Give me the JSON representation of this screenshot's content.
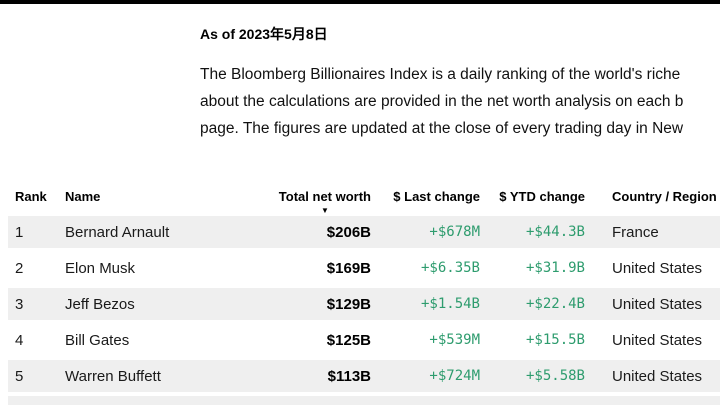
{
  "page": {
    "as_of": "As of 2023年5月8日",
    "intro_lines": [
      "The Bloomberg Billionaires Index is a daily ranking of the world's riche",
      "about the calculations are provided in the net worth analysis on each b",
      "page. The figures are updated at the close of every trading day in New"
    ]
  },
  "table": {
    "columns": [
      "Rank",
      "Name",
      "Total net worth",
      "$ Last change",
      "$ YTD change",
      "Country / Region"
    ],
    "sort_icon": "▼",
    "rows": [
      {
        "rank": "1",
        "name": "Bernard Arnault",
        "total_net_worth": "$206B",
        "last_change": "+$678M",
        "ytd_change": "+$44.3B",
        "country": "France"
      },
      {
        "rank": "2",
        "name": "Elon Musk",
        "total_net_worth": "$169B",
        "last_change": "+$6.35B",
        "ytd_change": "+$31.9B",
        "country": "United States"
      },
      {
        "rank": "3",
        "name": "Jeff Bezos",
        "total_net_worth": "$129B",
        "last_change": "+$1.54B",
        "ytd_change": "+$22.4B",
        "country": "United States"
      },
      {
        "rank": "4",
        "name": "Bill Gates",
        "total_net_worth": "$125B",
        "last_change": "+$539M",
        "ytd_change": "+$15.5B",
        "country": "United States"
      },
      {
        "rank": "5",
        "name": "Warren Buffett",
        "total_net_worth": "$113B",
        "last_change": "+$724M",
        "ytd_change": "+$5.58B",
        "country": "United States"
      }
    ]
  },
  "colors": {
    "positive_green": "#2e9c6e",
    "row_shade": "#efefef",
    "top_bar": "#000000"
  }
}
